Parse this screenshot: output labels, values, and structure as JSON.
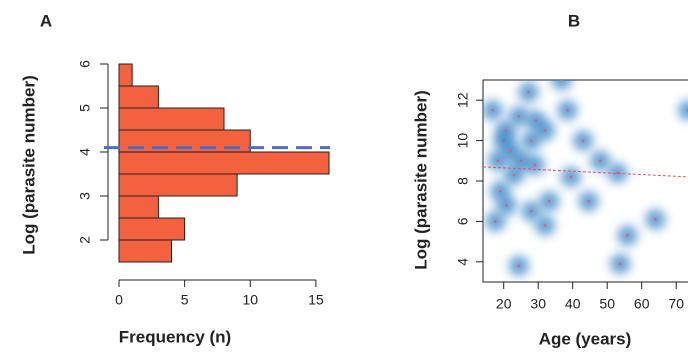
{
  "chart_data": [
    {
      "type": "histogram",
      "panel_label": "A",
      "orientation": "horizontal",
      "xlabel": "Frequency (n)",
      "ylabel": "Log (parasite number)",
      "bins": [
        1.5,
        2,
        2.5,
        3,
        3.5,
        4,
        4.5,
        5,
        5.5,
        6
      ],
      "values": [
        4,
        5,
        3,
        9,
        16,
        10,
        8,
        3,
        1
      ],
      "color": "#f4613f",
      "ylim": [
        1.5,
        6
      ],
      "yticks": [
        2,
        3,
        4,
        5,
        6
      ],
      "xlim": [
        0,
        16
      ],
      "xticks": [
        0,
        5,
        10,
        15
      ],
      "mean_line": 4.1,
      "mean_color": "#4a6fc8"
    },
    {
      "type": "scatter",
      "panel_label": "B",
      "xlabel": "Age (years)",
      "ylabel": "Log (parasite number)",
      "x": [
        16.8,
        20,
        18.3,
        20.6,
        27.2,
        24.4,
        29.3,
        32,
        28,
        25,
        23,
        19,
        17.6,
        20.8,
        24.4,
        28,
        32,
        36.8,
        38.5,
        43,
        48,
        53,
        44.6,
        33.2,
        39.5,
        64,
        55.9,
        53.8,
        73.5,
        29,
        22
      ],
      "y": [
        11.5,
        10,
        9,
        10.5,
        12.4,
        11.2,
        11,
        10.5,
        10,
        9,
        8.3,
        7.5,
        6,
        6.8,
        3.8,
        6.5,
        5.8,
        13,
        11.5,
        10,
        9,
        8.4,
        7,
        7,
        8.2,
        6.1,
        5.3,
        3.9,
        11.5,
        8.8,
        9.5
      ],
      "color": "#2f7fc4",
      "center_color": "#e0607a",
      "xlim": [
        14,
        74
      ],
      "xticks": [
        20,
        30,
        40,
        50,
        60,
        70
      ],
      "ylim": [
        3,
        13
      ],
      "yticks": [
        4,
        6,
        8,
        10,
        12
      ],
      "trend": {
        "x": [
          14,
          74
        ],
        "y": [
          8.7,
          8.2
        ],
        "color": "#e8505a"
      }
    }
  ]
}
